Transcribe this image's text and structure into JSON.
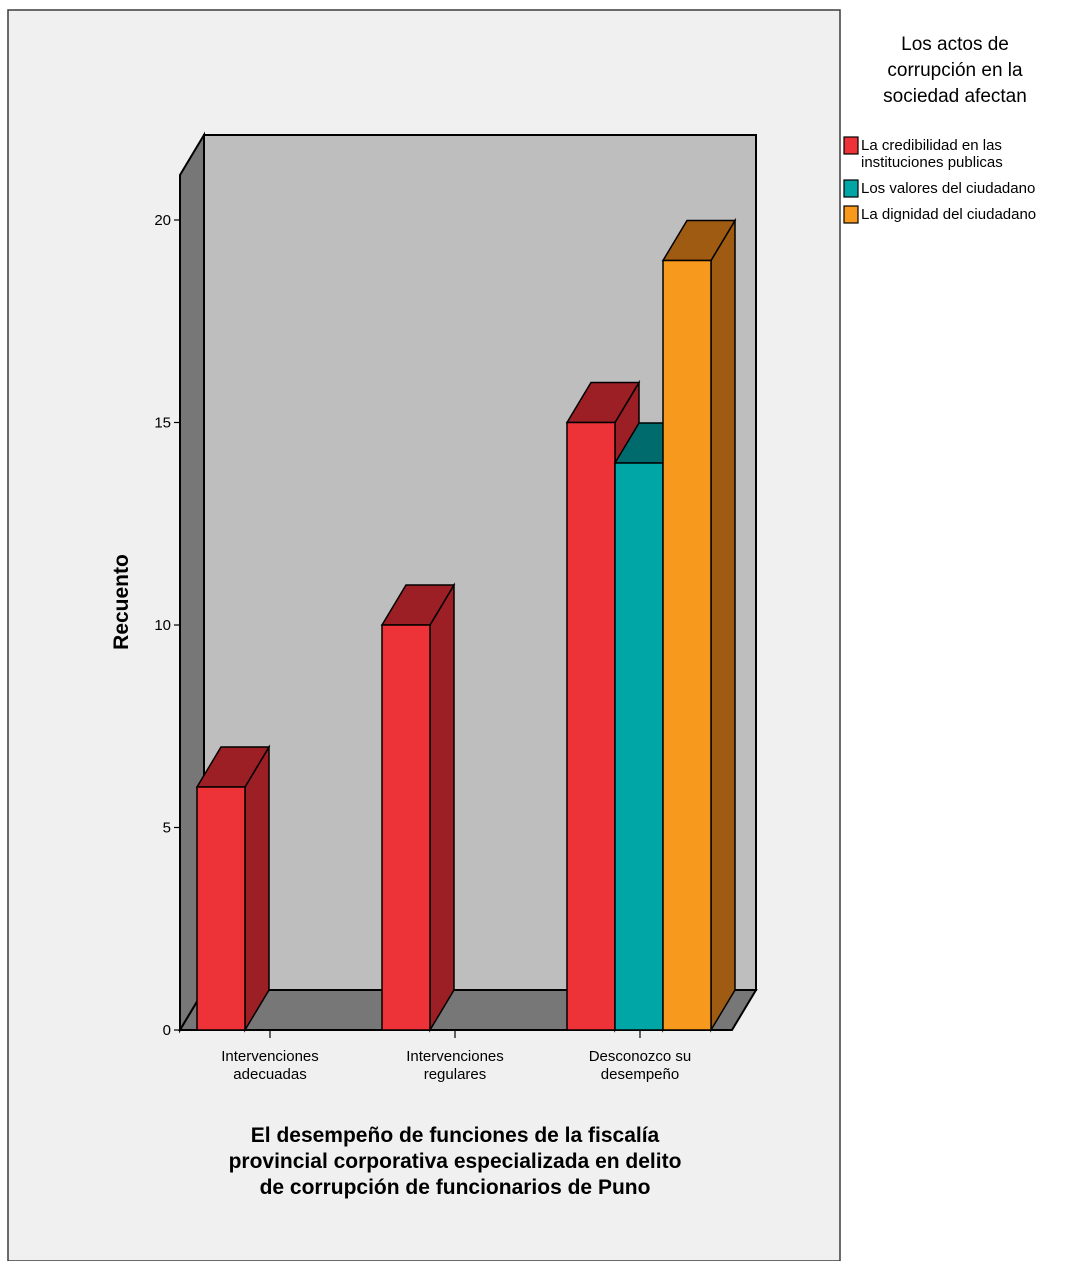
{
  "chart_data": {
    "type": "bar",
    "style": "3d-clustered",
    "categories": [
      [
        "Intervenciones",
        "adecuadas"
      ],
      [
        "Intervenciones",
        "regulares"
      ],
      [
        "Desconozco su",
        "desempeño"
      ]
    ],
    "series": [
      {
        "name": [
          "La credibilidad en las",
          "instituciones publicas"
        ],
        "color": "#EE3338",
        "side_color": "#9B1F24",
        "values": [
          6,
          10,
          15
        ]
      },
      {
        "name": [
          "Los valores del ciudadano"
        ],
        "color": "#00A6A6",
        "side_color": "#006B6C",
        "values": [
          null,
          null,
          14
        ]
      },
      {
        "name": [
          "La dignidad del ciudadano"
        ],
        "color": "#F7991C",
        "side_color": "#A05B12",
        "values": [
          null,
          null,
          19
        ]
      }
    ],
    "ylabel": "Recuento",
    "xlabel": [
      "El desempeño de funciones de la fiscalía",
      "provincial corporativa especializada en delito",
      "de corrupción de funcionarios de Puno"
    ],
    "legend_title": [
      "Los actos de",
      "corrupción en la",
      "sociedad afectan"
    ],
    "legend_position": "top-right",
    "ylim": [
      0,
      20
    ],
    "yticks": [
      "0",
      "5",
      "10",
      "15",
      "20"
    ],
    "grid": false,
    "colors": {
      "chart_background": "#F0F0F0",
      "back_wall": "#BEBEBE",
      "side_wall": "#777777",
      "floor": "#777777"
    }
  }
}
